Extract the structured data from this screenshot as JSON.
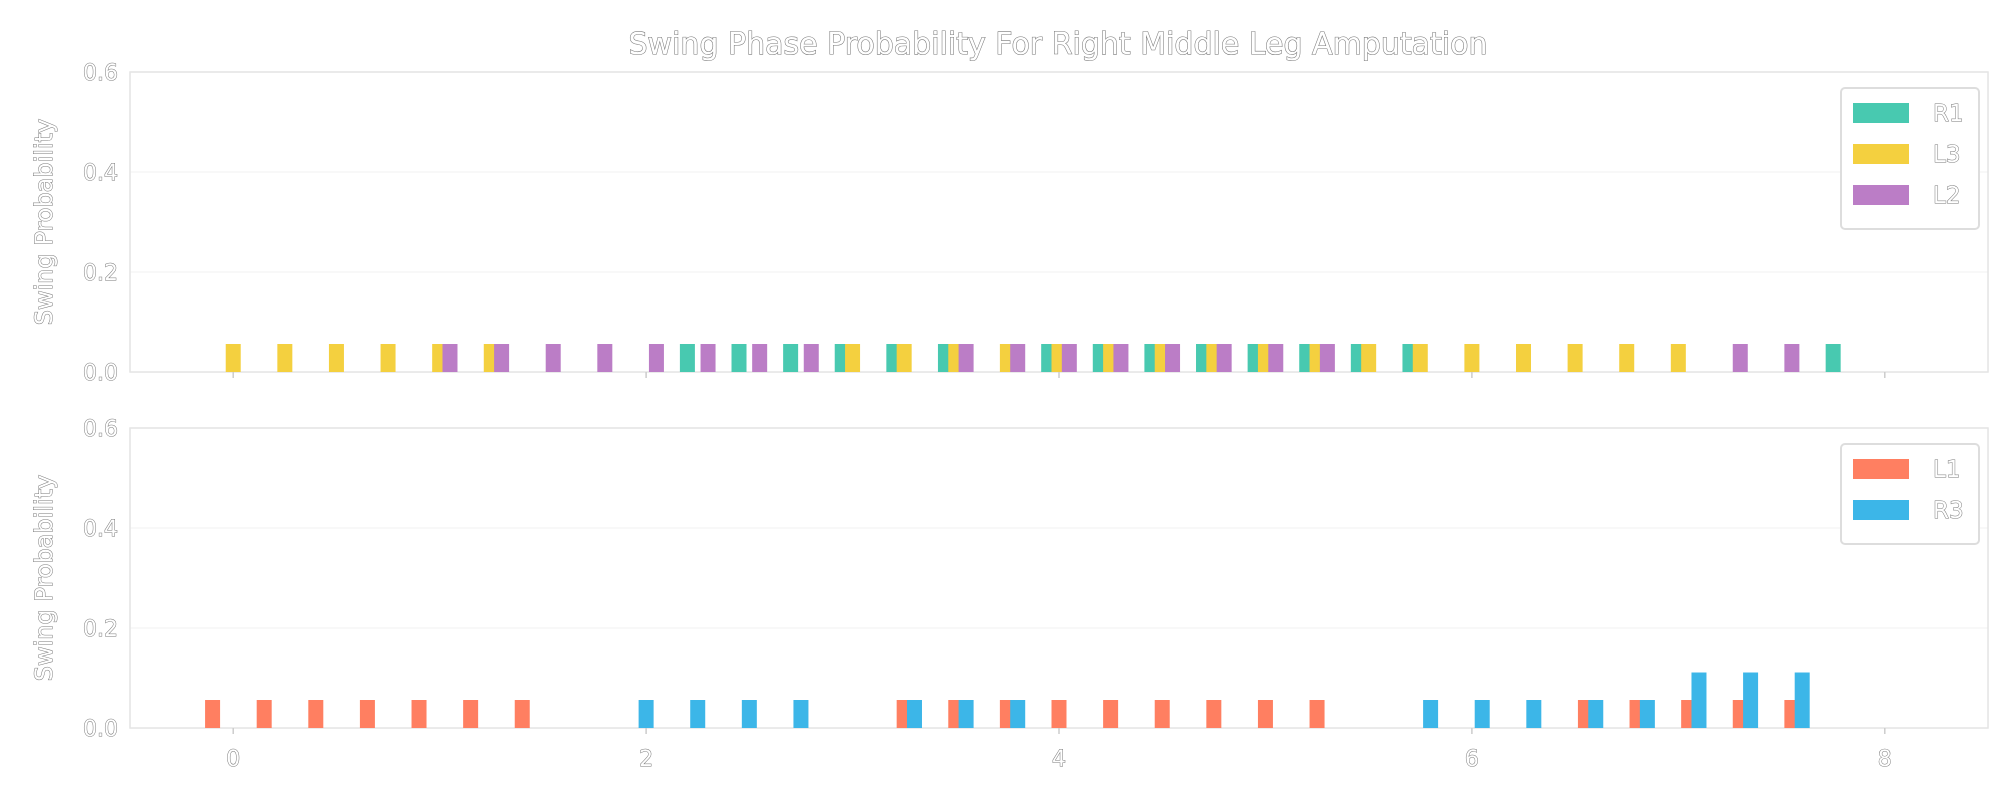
{
  "chart_data": {
    "type": "bar",
    "title": "Swing Phase Probability For Right Middle Leg Amputation",
    "xlim": [
      -0.5,
      8.5
    ],
    "x_ticks": [
      0,
      2,
      4,
      6,
      8
    ],
    "panels": [
      {
        "ylabel": "Swing Probability",
        "ylim": [
          0,
          0.6
        ],
        "y_ticks": [
          "0.0",
          "0.2",
          "0.4",
          "0.6"
        ],
        "legend_position": "top-right",
        "series": [
          {
            "name": "R1",
            "color": "#48c9b0",
            "x": [
              2.2,
              2.45,
              2.7,
              2.95,
              3.2,
              3.45,
              3.95,
              4.2,
              4.45,
              4.7,
              4.95,
              5.2,
              5.45,
              5.7,
              7.75
            ],
            "values": [
              0.056,
              0.056,
              0.056,
              0.056,
              0.056,
              0.056,
              0.056,
              0.056,
              0.056,
              0.056,
              0.056,
              0.056,
              0.056,
              0.056,
              0.056
            ]
          },
          {
            "name": "L3",
            "color": "#f4d03f",
            "x": [
              0,
              0.25,
              0.5,
              0.75,
              1.0,
              1.25,
              3.0,
              3.25,
              3.5,
              3.75,
              4.0,
              4.25,
              4.5,
              4.75,
              5.0,
              5.25,
              5.5,
              5.75,
              6.0,
              6.25,
              6.5,
              6.75,
              7.0
            ],
            "values": [
              0.056,
              0.056,
              0.056,
              0.056,
              0.056,
              0.056,
              0.056,
              0.056,
              0.056,
              0.056,
              0.056,
              0.056,
              0.056,
              0.056,
              0.056,
              0.056,
              0.056,
              0.056,
              0.056,
              0.056,
              0.056,
              0.056,
              0.056
            ]
          },
          {
            "name": "L2",
            "color": "#bb7dc6",
            "x": [
              1.05,
              1.3,
              1.55,
              1.8,
              2.05,
              2.3,
              2.55,
              2.8,
              3.55,
              3.8,
              4.05,
              4.3,
              4.55,
              4.8,
              5.05,
              5.3,
              7.3,
              7.55
            ],
            "values": [
              0.056,
              0.056,
              0.056,
              0.056,
              0.056,
              0.056,
              0.056,
              0.056,
              0.056,
              0.056,
              0.056,
              0.056,
              0.056,
              0.056,
              0.056,
              0.056,
              0.056,
              0.056
            ]
          }
        ]
      },
      {
        "ylabel": "Swing Probability",
        "ylim": [
          0,
          0.6
        ],
        "y_ticks": [
          "0.0",
          "0.2",
          "0.4",
          "0.6"
        ],
        "legend_position": "top-right",
        "series": [
          {
            "name": "L1",
            "color": "#ff7f61",
            "x": [
              -0.1,
              0.15,
              0.4,
              0.65,
              0.9,
              1.15,
              1.4,
              3.25,
              3.5,
              3.75,
              4.0,
              4.25,
              4.5,
              4.75,
              5.0,
              5.25,
              6.55,
              6.8,
              7.05,
              7.3,
              7.55
            ],
            "values": [
              0.056,
              0.056,
              0.056,
              0.056,
              0.056,
              0.056,
              0.056,
              0.056,
              0.056,
              0.056,
              0.056,
              0.056,
              0.056,
              0.056,
              0.056,
              0.056,
              0.056,
              0.056,
              0.056,
              0.056,
              0.056
            ]
          },
          {
            "name": "R3",
            "color": "#3cb6e8",
            "x": [
              2.0,
              2.25,
              2.5,
              2.75,
              3.3,
              3.55,
              3.8,
              5.8,
              6.05,
              6.3,
              6.6,
              6.85,
              7.1,
              7.35,
              7.6
            ],
            "values": [
              0.056,
              0.056,
              0.056,
              0.056,
              0.056,
              0.056,
              0.056,
              0.056,
              0.056,
              0.056,
              0.056,
              0.056,
              0.111,
              0.111,
              0.111
            ]
          }
        ]
      }
    ]
  }
}
